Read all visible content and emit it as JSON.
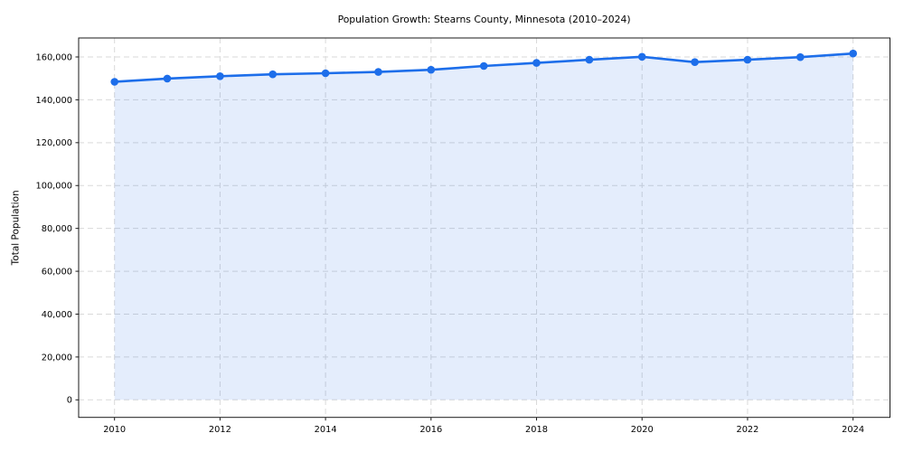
{
  "figure": {
    "title": "Population Growth: Stearns County, Minnesota (2010–2024)",
    "ylabel": "Total Population"
  },
  "chart_data": {
    "type": "line",
    "title": "Population Growth: Stearns County, Minnesota (2010–2024)",
    "xlabel": "",
    "ylabel": "Total Population",
    "x": [
      2010,
      2011,
      2012,
      2013,
      2014,
      2015,
      2016,
      2017,
      2018,
      2019,
      2020,
      2021,
      2022,
      2023,
      2024
    ],
    "series": [
      {
        "name": "Total Population",
        "values": [
          148400,
          149900,
          151000,
          151900,
          152400,
          153000,
          154000,
          155800,
          157200,
          158700,
          160100,
          157600,
          158700,
          159900,
          161600
        ]
      }
    ],
    "xticks": [
      2010,
      2012,
      2014,
      2016,
      2018,
      2020,
      2022,
      2024
    ],
    "yticks": [
      0,
      20000,
      40000,
      60000,
      80000,
      100000,
      120000,
      140000,
      160000
    ],
    "ytick_labels": [
      "0",
      "20,000",
      "40,000",
      "60,000",
      "80,000",
      "100,000",
      "120,000",
      "140,000",
      "160,000"
    ],
    "xlim": [
      2009.32,
      2024.7
    ],
    "ylim": [
      -8180,
      168860
    ],
    "grid": true,
    "grid_style": "dashed",
    "legend": false,
    "marker": "circle",
    "area_fill": true,
    "colors": {
      "line": "#1d6eea",
      "marker": "#1d6eea",
      "fill": "#1d6eea",
      "fill_opacity": 0.12,
      "grid": "#d9d9d9",
      "spine": "#1a1a1a",
      "tick": "#1a1a1a",
      "text": "#000000",
      "background": "#ffffff"
    }
  }
}
